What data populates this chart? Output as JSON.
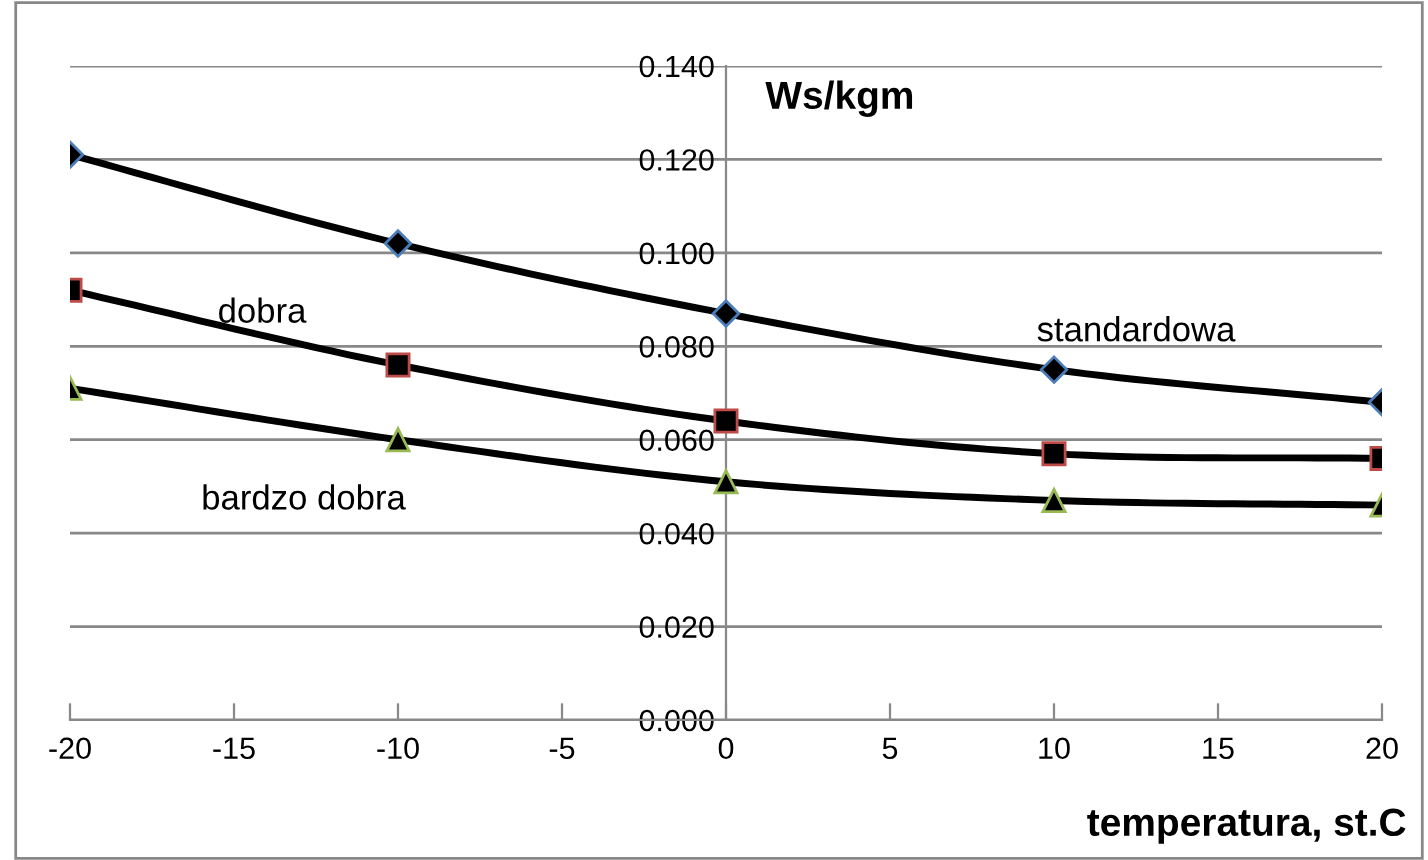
{
  "chart_data": {
    "type": "line",
    "xlabel": "temperatura, st.C",
    "ylabel": "Ws/kgm",
    "x": [
      -20,
      -10,
      0,
      10,
      20
    ],
    "series": [
      {
        "name": "standardowa",
        "color": "#000000",
        "marker": "diamond",
        "values": [
          0.121,
          0.102,
          0.087,
          0.075,
          0.068
        ]
      },
      {
        "name": "dobra",
        "color": "#000000",
        "marker": "square",
        "values": [
          0.092,
          0.076,
          0.064,
          0.057,
          0.056
        ]
      },
      {
        "name": "bardzo dobra",
        "color": "#000000",
        "marker": "triangle",
        "values": [
          0.071,
          0.06,
          0.051,
          0.047,
          0.046
        ]
      }
    ],
    "xlim": [
      -20,
      20
    ],
    "xticks": [
      -20,
      -15,
      -10,
      -5,
      0,
      5,
      10,
      15,
      20
    ],
    "ylim": [
      0,
      0.14
    ],
    "yticks": [
      {
        "value": 0,
        "label": "0.000"
      },
      {
        "value": 0.02,
        "label": "0.020"
      },
      {
        "value": 0.04,
        "label": "0.040"
      },
      {
        "value": 0.06,
        "label": "0.060"
      },
      {
        "value": 0.08,
        "label": "0.080"
      },
      {
        "value": 0.1,
        "label": "0.100"
      },
      {
        "value": 0.12,
        "label": "0.120"
      },
      {
        "value": 0.14,
        "label": "0.140"
      }
    ],
    "grid": "y",
    "legend": false,
    "line_style": "solid"
  }
}
